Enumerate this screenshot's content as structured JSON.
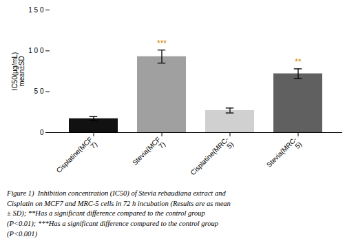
{
  "chart_data": {
    "type": "bar",
    "categories": [
      "Cisplatine(MCF\n7)",
      "Stevia(MCF\n7)",
      "Cisplatine(MRC-\n5)",
      "Stevia(MRC-\n5)"
    ],
    "values": [
      17,
      93,
      27,
      72
    ],
    "errors": [
      2.5,
      8,
      3,
      6
    ],
    "colors": [
      "#111111",
      "#a0a0a0",
      "#d0d0d0",
      "#606060"
    ],
    "ylabel": "IC50(µg/mL)\nmean±SD",
    "ylim": [
      0,
      150
    ],
    "yticks": [
      0,
      {
        "value": 50,
        "label": "5 0"
      },
      {
        "value": 100,
        "label": "1 0 0"
      },
      {
        "value": 150,
        "label": "1 5 0"
      }
    ],
    "annotations": [
      {
        "category": "Stevia(MCF\n7)",
        "text": "***",
        "color": "#cc8800"
      },
      {
        "category": "Stevia(MRC-\n5)",
        "text": "**",
        "color": "#cc8800"
      }
    ],
    "caption": "Figure 1)  Inhibition concentration (IC50) of Stevia rebaudiana extract and\nCisplatin on MCF7 and MRC-5 cells in 72 h incubation (Results are as mean\n± SD); **Has a significant difference compared to the control group\n(P<0.01); ***Has a significant difference compared to the control group\n(P<0.001)"
  }
}
